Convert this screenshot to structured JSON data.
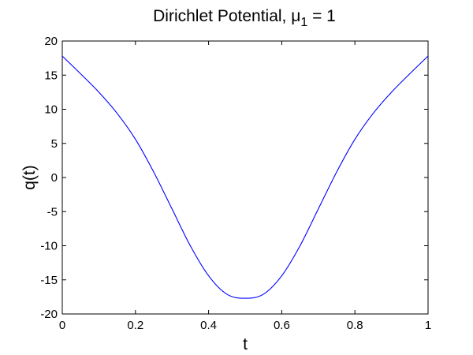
{
  "chart_data": {
    "type": "line",
    "title": {
      "prefix": "Dirichlet Potential, ",
      "symbol": "μ",
      "subscript": "1",
      "suffix": " = 1"
    },
    "xlabel": "t",
    "ylabel": "q(t)",
    "xlim": [
      0,
      1
    ],
    "ylim": [
      -20,
      20
    ],
    "x_ticks": [
      0,
      0.2,
      0.4,
      0.6,
      0.8,
      1
    ],
    "x_tick_labels": [
      "0",
      "0.2",
      "0.4",
      "0.6",
      "0.8",
      "1"
    ],
    "y_ticks": [
      -20,
      -15,
      -10,
      -5,
      0,
      5,
      10,
      15,
      20
    ],
    "y_tick_labels": [
      "-20",
      "-15",
      "-10",
      "-5",
      "0",
      "5",
      "10",
      "15",
      "20"
    ],
    "grid": false,
    "line_color": "#0000ff",
    "series": [
      {
        "x": [
          0,
          0.05,
          0.1,
          0.15,
          0.2,
          0.25,
          0.3,
          0.35,
          0.4,
          0.45,
          0.5,
          0.55,
          0.6,
          0.65,
          0.7,
          0.75,
          0.8,
          0.85,
          0.9,
          0.95,
          1
        ],
        "y": [
          17.8,
          15.2,
          12.5,
          9.4,
          5.6,
          0.8,
          -4.6,
          -10.0,
          -14.4,
          -17.1,
          -17.7,
          -17.1,
          -14.4,
          -10.0,
          -4.6,
          0.8,
          5.6,
          9.4,
          12.5,
          15.2,
          17.8
        ]
      }
    ]
  }
}
